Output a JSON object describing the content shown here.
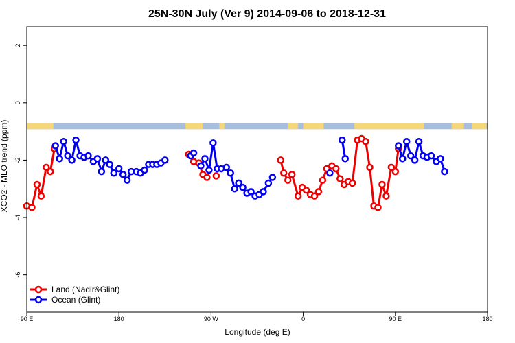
{
  "chart_data": {
    "type": "line",
    "title": "25N-30N July (Ver 9)   2014-09-06 to 2018-12-31",
    "xlabel": "Longitude (deg E)",
    "ylabel": "XCO2 - MLO trend (ppm)",
    "xlim": [
      90,
      450
    ],
    "ylim": [
      -7.3,
      2.65
    ],
    "x_ticks": [
      {
        "value": 90,
        "label": "90 E"
      },
      {
        "value": 180,
        "label": "180"
      },
      {
        "value": 270,
        "label": "90 W"
      },
      {
        "value": 360,
        "label": "0"
      },
      {
        "value": 450,
        "label": "90 E"
      },
      {
        "value": 540,
        "label": "180"
      }
    ],
    "x_ticks_note": "x values are continuous degrees east (90 to 540) so the axis wraps twice around the globe",
    "y_ticks": [
      {
        "value": -6,
        "label": "-6"
      },
      {
        "value": -4,
        "label": "-4"
      },
      {
        "value": -2,
        "label": "-2"
      },
      {
        "value": 0,
        "label": "0"
      },
      {
        "value": 2,
        "label": "2"
      }
    ],
    "land_strip": {
      "y_top": -0.7,
      "y_bottom": -0.92,
      "land_color": "#f5d77a",
      "ocean_color": "#a7bfdc",
      "land_ranges": [
        [
          90,
          116
        ],
        [
          245,
          262
        ],
        [
          278,
          283
        ],
        [
          345,
          355
        ],
        [
          360,
          380
        ],
        [
          410,
          478
        ],
        [
          505,
          517
        ],
        [
          525,
          539
        ]
      ]
    },
    "legend": {
      "position": "bottom-left"
    },
    "series": [
      {
        "name": "Land (Nadir&Glint)",
        "color": "#ee0000",
        "segments": [
          [
            [
              90,
              -3.6
            ],
            [
              95,
              -3.65
            ],
            [
              100,
              -2.85
            ],
            [
              104,
              -3.25
            ],
            [
              109,
              -2.25
            ],
            [
              113,
              -2.4
            ],
            [
              117,
              -1.6
            ]
          ],
          [
            [
              248,
              -1.8
            ],
            [
              253,
              -2.05
            ],
            [
              258,
              -2.1
            ],
            [
              262,
              -2.5
            ],
            [
              266,
              -2.6
            ]
          ],
          [
            [
              275,
              -2.55
            ]
          ],
          [
            [
              338,
              -2.0
            ],
            [
              341,
              -2.45
            ],
            [
              345,
              -2.7
            ],
            [
              349,
              -2.5
            ],
            [
              355,
              -3.25
            ],
            [
              359,
              -2.95
            ],
            [
              363,
              -3.05
            ],
            [
              367,
              -3.2
            ],
            [
              371,
              -3.25
            ],
            [
              375,
              -3.1
            ],
            [
              379,
              -2.7
            ],
            [
              383,
              -2.3
            ],
            [
              388,
              -2.2
            ],
            [
              392,
              -2.3
            ],
            [
              396,
              -2.65
            ],
            [
              400,
              -2.85
            ],
            [
              404,
              -2.75
            ],
            [
              408,
              -2.8
            ],
            [
              413,
              -1.3
            ],
            [
              417,
              -1.25
            ],
            [
              421,
              -1.35
            ],
            [
              425,
              -2.25
            ],
            [
              429,
              -3.6
            ],
            [
              433,
              -3.65
            ],
            [
              437,
              -2.85
            ],
            [
              441,
              -3.25
            ],
            [
              446,
              -2.25
            ],
            [
              450,
              -2.4
            ],
            [
              453,
              -1.6
            ]
          ]
        ]
      },
      {
        "name": "Ocean (Glint)",
        "color": "#0000ee",
        "segments": [
          [
            [
              118,
              -1.5
            ],
            [
              122,
              -1.95
            ],
            [
              126,
              -1.35
            ],
            [
              130,
              -1.85
            ],
            [
              134,
              -2.0
            ],
            [
              138,
              -1.3
            ],
            [
              142,
              -1.85
            ],
            [
              146,
              -1.9
            ],
            [
              150,
              -1.85
            ],
            [
              155,
              -2.05
            ],
            [
              159,
              -1.95
            ],
            [
              163,
              -2.4
            ],
            [
              167,
              -2.0
            ],
            [
              171,
              -2.15
            ],
            [
              175,
              -2.45
            ],
            [
              180,
              -2.3
            ],
            [
              184,
              -2.5
            ],
            [
              188,
              -2.7
            ],
            [
              192,
              -2.4
            ],
            [
              197,
              -2.4
            ],
            [
              201,
              -2.45
            ],
            [
              205,
              -2.35
            ],
            [
              209,
              -2.15
            ],
            [
              213,
              -2.15
            ],
            [
              217,
              -2.15
            ],
            [
              221,
              -2.1
            ],
            [
              225,
              -2.0
            ]
          ],
          [
            [
              250,
              -1.85
            ],
            [
              253,
              -1.75
            ]
          ],
          [
            [
              260,
              -2.2
            ],
            [
              264,
              -1.95
            ],
            [
              268,
              -2.35
            ],
            [
              272,
              -1.4
            ],
            [
              276,
              -2.3
            ],
            [
              280,
              -2.3
            ],
            [
              285,
              -2.25
            ],
            [
              289,
              -2.45
            ],
            [
              293,
              -3.0
            ],
            [
              297,
              -2.8
            ],
            [
              301,
              -2.95
            ],
            [
              305,
              -3.15
            ],
            [
              309,
              -3.1
            ],
            [
              313,
              -3.25
            ],
            [
              317,
              -3.2
            ],
            [
              321,
              -3.1
            ],
            [
              326,
              -2.8
            ],
            [
              330,
              -2.6
            ]
          ],
          [
            [
              386,
              -2.45
            ]
          ],
          [
            [
              398,
              -1.3
            ],
            [
              401,
              -1.95
            ]
          ],
          [
            [
              453,
              -1.5
            ],
            [
              457,
              -1.95
            ],
            [
              461,
              -1.35
            ],
            [
              465,
              -1.85
            ],
            [
              469,
              -2.0
            ],
            [
              473,
              -1.35
            ],
            [
              477,
              -1.85
            ],
            [
              481,
              -1.9
            ],
            [
              485,
              -1.85
            ],
            [
              490,
              -2.05
            ],
            [
              494,
              -1.95
            ],
            [
              498,
              -2.4
            ]
          ]
        ]
      }
    ]
  }
}
